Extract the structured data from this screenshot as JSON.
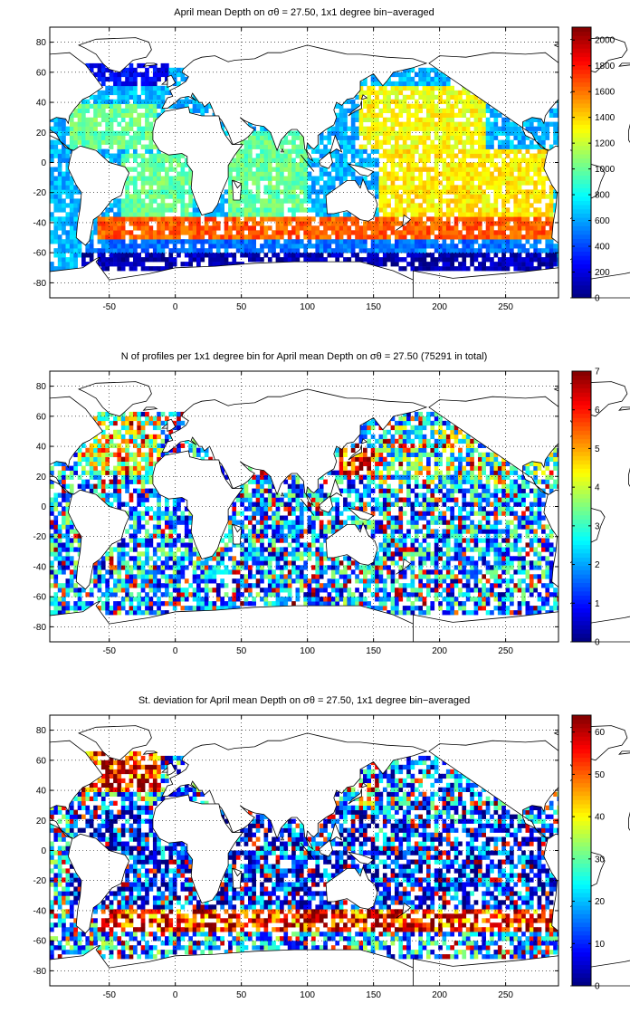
{
  "panels": [
    {
      "title": "April mean Depth on σθ = 27.50, 1x1 degree bin−averaged",
      "xlim": [
        -95,
        290
      ],
      "ylim": [
        -90,
        90
      ],
      "xticks": [
        -50,
        0,
        50,
        100,
        150,
        200,
        250
      ],
      "yticks": [
        80,
        60,
        40,
        20,
        0,
        -20,
        -40,
        -60,
        -80
      ],
      "colorbar": {
        "min": 0,
        "max": 2100,
        "ticks": [
          0,
          200,
          400,
          600,
          800,
          1000,
          1200,
          1400,
          1600,
          1800,
          2000
        ]
      },
      "grid": "dotted"
    },
    {
      "title": "N of profiles per 1x1 degree bin for April mean Depth on σθ = 27.50 (75291 in total)",
      "xlim": [
        -95,
        290
      ],
      "ylim": [
        -90,
        90
      ],
      "xticks": [
        -50,
        0,
        50,
        100,
        150,
        200,
        250
      ],
      "yticks": [
        80,
        60,
        40,
        20,
        0,
        -20,
        -40,
        -60,
        -80
      ],
      "colorbar": {
        "min": 0,
        "max": 7,
        "ticks": [
          0,
          1,
          2,
          3,
          4,
          5,
          6,
          7
        ]
      },
      "grid": "dotted"
    },
    {
      "title": "St. deviation for April mean Depth on σθ = 27.50, 1x1 degree bin−averaged",
      "xlim": [
        -95,
        290
      ],
      "ylim": [
        -90,
        90
      ],
      "xticks": [
        -50,
        0,
        50,
        100,
        150,
        200,
        250
      ],
      "yticks": [
        80,
        60,
        40,
        20,
        0,
        -20,
        -40,
        -60,
        -80
      ],
      "colorbar": {
        "min": 0,
        "max": 64,
        "ticks": [
          0,
          10,
          20,
          30,
          40,
          50,
          60
        ]
      },
      "grid": "dotted"
    }
  ],
  "chart_data": [
    {
      "type": "heatmap",
      "title": "April mean Depth on σθ = 27.50, 1x1 degree bin−averaged",
      "xlim": [
        -95,
        290
      ],
      "ylim": [
        -90,
        90
      ],
      "colormap": "jet",
      "clim": [
        0,
        2100
      ],
      "regions": [
        {
          "lon": [
            -80,
            -5
          ],
          "lat": [
            52,
            66
          ],
          "value": 250
        },
        {
          "lon": [
            -65,
            -10
          ],
          "lat": [
            38,
            52
          ],
          "value": 650
        },
        {
          "lon": [
            -80,
            -15
          ],
          "lat": [
            10,
            38
          ],
          "value": 1000
        },
        {
          "lon": [
            -40,
            12
          ],
          "lat": [
            -40,
            5
          ],
          "value": 1000
        },
        {
          "lon": [
            40,
            100
          ],
          "lat": [
            -35,
            22
          ],
          "value": 1000
        },
        {
          "lon": [
            140,
            235
          ],
          "lat": [
            10,
            50
          ],
          "value": 1300
        },
        {
          "lon": [
            155,
            285
          ],
          "lat": [
            -35,
            10
          ],
          "value": 1350
        },
        {
          "lon": [
            -60,
            290
          ],
          "lat": [
            -50,
            -36
          ],
          "value": 1650
        },
        {
          "lon": [
            -70,
            290
          ],
          "lat": [
            -60,
            -50
          ],
          "value": 500
        },
        {
          "lon": [
            -70,
            290
          ],
          "lat": [
            -72,
            -60
          ],
          "value": 100
        }
      ]
    },
    {
      "type": "heatmap",
      "title": "N of profiles per 1x1 degree bin for April mean Depth on σθ = 27.50 (75291 in total)",
      "xlim": [
        -95,
        290
      ],
      "ylim": [
        -90,
        90
      ],
      "colormap": "jet",
      "clim": [
        0,
        7
      ],
      "total_profiles": 75291,
      "regions": [
        {
          "lon": [
            -75,
            -10
          ],
          "lat": [
            20,
            60
          ],
          "value": 4
        },
        {
          "lon": [
            125,
            165
          ],
          "lat": [
            15,
            40
          ],
          "value": 6
        },
        {
          "lon": [
            55,
            100
          ],
          "lat": [
            5,
            25
          ],
          "value": 5
        },
        {
          "lon": [
            -70,
            290
          ],
          "lat": [
            -60,
            20
          ],
          "value": 2
        },
        {
          "lon": [
            150,
            290
          ],
          "lat": [
            15,
            55
          ],
          "value": 3
        }
      ]
    },
    {
      "type": "heatmap",
      "title": "St. deviation for April mean Depth on σθ = 27.50, 1x1 degree bin−averaged",
      "xlim": [
        -95,
        290
      ],
      "ylim": [
        -90,
        90
      ],
      "colormap": "jet",
      "clim": [
        0,
        64
      ],
      "regions": [
        {
          "lon": [
            -75,
            -10
          ],
          "lat": [
            38,
            65
          ],
          "value": 55
        },
        {
          "lon": [
            140,
            200
          ],
          "lat": [
            28,
            45
          ],
          "value": 45
        },
        {
          "lon": [
            -60,
            290
          ],
          "lat": [
            -55,
            -38
          ],
          "value": 55
        },
        {
          "lon": [
            -80,
            290
          ],
          "lat": [
            -40,
            30
          ],
          "value": 10
        },
        {
          "lon": [
            150,
            290
          ],
          "lat": [
            10,
            60
          ],
          "value": 15
        }
      ]
    }
  ]
}
